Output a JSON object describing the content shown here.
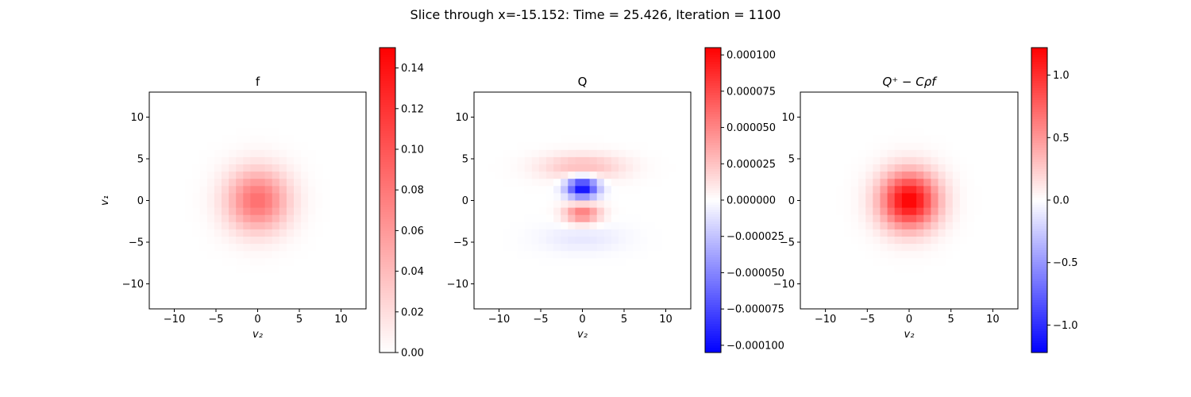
{
  "figure": {
    "suptitle": "Slice through x=-15.152: Time = 25.426, Iteration = 1100"
  },
  "colors": {
    "cmap_low": "#0000ff",
    "cmap_mid": "#ffffff",
    "cmap_high": "#ff0000"
  },
  "chart_data": [
    {
      "type": "heatmap",
      "title": "f",
      "xlabel": "v₂",
      "ylabel": "v₁",
      "xlim": [
        -13,
        13
      ],
      "ylim": [
        -13,
        13
      ],
      "x_ticks": [
        -10,
        -5,
        0,
        5,
        10
      ],
      "x_tick_labels": [
        "−10",
        "−5",
        "0",
        "5",
        "10"
      ],
      "y_ticks": [
        -10,
        -5,
        0,
        5,
        10
      ],
      "y_tick_labels": [
        "−10",
        "−5",
        "0",
        "5",
        "10"
      ],
      "grid": false,
      "colorbar": {
        "range": [
          -0.15,
          0.15
        ],
        "visible_range": [
          0.0,
          0.15
        ],
        "ticks": [
          0.0,
          0.02,
          0.04,
          0.06,
          0.08,
          0.1,
          0.12,
          0.14
        ],
        "tick_labels": [
          "0.00",
          "0.02",
          "0.04",
          "0.06",
          "0.08",
          "0.10",
          "0.12",
          "0.14"
        ]
      },
      "field": {
        "grid_n": 30,
        "components": [
          {
            "amp": 0.085,
            "cx": 0,
            "cy": 0,
            "sx": 2.6,
            "sy": 2.6
          }
        ]
      }
    },
    {
      "type": "heatmap",
      "title": "Q",
      "xlabel": "v₂",
      "ylabel": "",
      "xlim": [
        -13,
        13
      ],
      "ylim": [
        -13,
        13
      ],
      "x_ticks": [
        -10,
        -5,
        0,
        5,
        10
      ],
      "x_tick_labels": [
        "−10",
        "−5",
        "0",
        "5",
        "10"
      ],
      "y_ticks": [
        -10,
        -5,
        0,
        5,
        10
      ],
      "y_tick_labels": [
        "−10",
        "−5",
        "0",
        "5",
        "10"
      ],
      "grid": false,
      "colorbar": {
        "range": [
          -0.000105,
          0.000105
        ],
        "visible_range": [
          -0.000105,
          0.000105
        ],
        "ticks": [
          -0.0001,
          -7.5e-05,
          -5e-05,
          -2.5e-05,
          0.0,
          2.5e-05,
          5e-05,
          7.5e-05,
          0.0001
        ],
        "tick_labels": [
          "−0.000100",
          "−0.000075",
          "−0.000050",
          "−0.000025",
          "0.000000",
          "0.000025",
          "0.000050",
          "0.000075",
          "0.000100"
        ]
      },
      "field": {
        "grid_n": 30,
        "components": [
          {
            "amp": -0.000105,
            "cx": 0,
            "cy": 1.5,
            "sx": 1.3,
            "sy": 0.9
          },
          {
            "amp": 5.5e-05,
            "cx": 0,
            "cy": -1.5,
            "sx": 1.5,
            "sy": 0.9
          },
          {
            "amp": 2.8e-05,
            "cx": 0,
            "cy": 4.0,
            "sx": 3.5,
            "sy": 1.1
          },
          {
            "amp": -1e-05,
            "cx": 0,
            "cy": -4.5,
            "sx": 3.5,
            "sy": 1.2
          }
        ]
      }
    },
    {
      "type": "heatmap",
      "title": "Q⁺ − Cρf",
      "xlabel": "v₂",
      "ylabel": "",
      "xlim": [
        -13,
        13
      ],
      "ylim": [
        -13,
        13
      ],
      "x_ticks": [
        -10,
        -5,
        0,
        5,
        10
      ],
      "x_tick_labels": [
        "−10",
        "−5",
        "0",
        "5",
        "10"
      ],
      "y_ticks": [
        -10,
        -5,
        0,
        5,
        10
      ],
      "y_tick_labels": [
        "−10",
        "−5",
        "0",
        "5",
        "10"
      ],
      "grid": false,
      "colorbar": {
        "range": [
          -1.22,
          1.22
        ],
        "visible_range": [
          -1.22,
          1.22
        ],
        "ticks": [
          -1.0,
          -0.5,
          0.0,
          0.5,
          1.0
        ],
        "tick_labels": [
          "−1.0",
          "−0.5",
          "0.0",
          "0.5",
          "1.0"
        ]
      },
      "field": {
        "grid_n": 30,
        "components": [
          {
            "amp": 1.22,
            "cx": 0,
            "cy": 0,
            "sx": 2.4,
            "sy": 2.4
          }
        ]
      }
    }
  ]
}
